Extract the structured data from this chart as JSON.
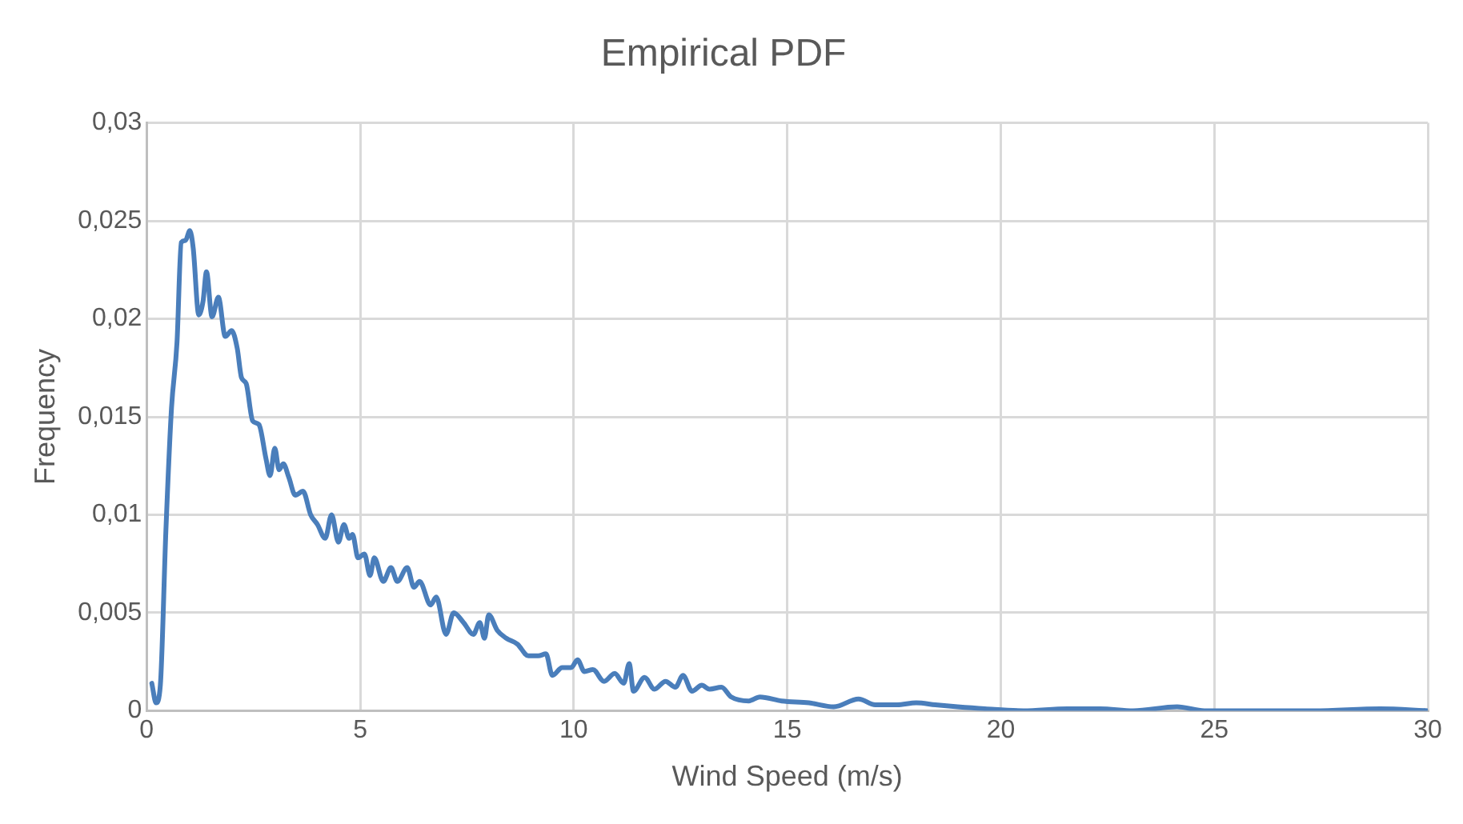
{
  "chart_data": {
    "type": "line",
    "title": "Empirical PDF",
    "xlabel": "Wind Speed (m/s)",
    "ylabel": "Frequency",
    "grid": true,
    "legend": false,
    "marker": "none",
    "line_style": "solid",
    "xlim": [
      0,
      30
    ],
    "xticks": [
      0,
      5,
      10,
      15,
      20,
      25,
      30
    ],
    "ylim": [
      0,
      0.03
    ],
    "yticks": [
      0,
      {
        "value": 0.005,
        "label": "0,005"
      },
      {
        "value": 0.01,
        "label": "0,01"
      },
      {
        "value": 0.015,
        "label": "0,015"
      },
      {
        "value": 0.02,
        "label": "0,02"
      },
      {
        "value": 0.025,
        "label": "0,025"
      },
      {
        "value": 0.03,
        "label": "0,03"
      }
    ],
    "series": [
      {
        "color": "#4a7ebb",
        "x": [
          0.12,
          0.22,
          0.32,
          0.45,
          0.58,
          0.71,
          0.81,
          0.91,
          1.01,
          1.09,
          1.22,
          1.32,
          1.4,
          1.53,
          1.68,
          1.84,
          1.99,
          2.12,
          2.22,
          2.33,
          2.48,
          2.63,
          2.79,
          2.89,
          3.0,
          3.1,
          3.2,
          3.33,
          3.48,
          3.66,
          3.84,
          4.0,
          4.18,
          4.33,
          4.49,
          4.62,
          4.74,
          4.82,
          4.95,
          5.1,
          5.23,
          5.33,
          5.54,
          5.72,
          5.87,
          6.1,
          6.26,
          6.39,
          6.65,
          6.78,
          7.01,
          7.19,
          7.42,
          7.65,
          7.8,
          7.91,
          8.01,
          8.21,
          8.42,
          8.68,
          8.94,
          9.17,
          9.35,
          9.5,
          9.73,
          9.94,
          10.09,
          10.25,
          10.45,
          10.71,
          10.96,
          11.17,
          11.3,
          11.4,
          11.66,
          11.89,
          12.15,
          12.38,
          12.56,
          12.77,
          13.0,
          13.18,
          13.46,
          13.69,
          14.1,
          14.36,
          14.87,
          15.51,
          16.09,
          16.67,
          17.06,
          17.57,
          18.02,
          18.47,
          18.99,
          19.63,
          20.53,
          21.56,
          22.33,
          23.1,
          24.13,
          24.77,
          26.06,
          27.34,
          28.89,
          30.0
        ],
        "values": [
          0.0014,
          0.0004,
          0.0013,
          0.0092,
          0.0154,
          0.0188,
          0.0239,
          0.024,
          0.0245,
          0.0236,
          0.0202,
          0.0209,
          0.0224,
          0.0201,
          0.0211,
          0.0191,
          0.0194,
          0.0185,
          0.017,
          0.0167,
          0.0148,
          0.0146,
          0.0129,
          0.012,
          0.0134,
          0.0123,
          0.0126,
          0.0119,
          0.011,
          0.0112,
          0.01,
          0.0095,
          0.0088,
          0.01,
          0.0086,
          0.0095,
          0.0088,
          0.009,
          0.0078,
          0.008,
          0.0069,
          0.0078,
          0.0066,
          0.0073,
          0.0066,
          0.0073,
          0.0063,
          0.0066,
          0.0054,
          0.0058,
          0.0039,
          0.005,
          0.0045,
          0.0039,
          0.0045,
          0.0037,
          0.0049,
          0.0041,
          0.0037,
          0.0034,
          0.0028,
          0.0028,
          0.0029,
          0.0018,
          0.0022,
          0.0022,
          0.0026,
          0.002,
          0.0021,
          0.0015,
          0.0019,
          0.0014,
          0.0024,
          0.001,
          0.0017,
          0.0011,
          0.0015,
          0.0012,
          0.0018,
          0.001,
          0.0013,
          0.0011,
          0.0012,
          0.0007,
          0.0005,
          0.0007,
          0.0005,
          0.0004,
          0.0002,
          0.0006,
          0.0003,
          0.0003,
          0.0004,
          0.0003,
          0.0002,
          0.0001,
          0,
          0.0001,
          0.0001,
          0,
          0.0002,
          0,
          0,
          0,
          0.0001,
          0
        ]
      }
    ]
  }
}
